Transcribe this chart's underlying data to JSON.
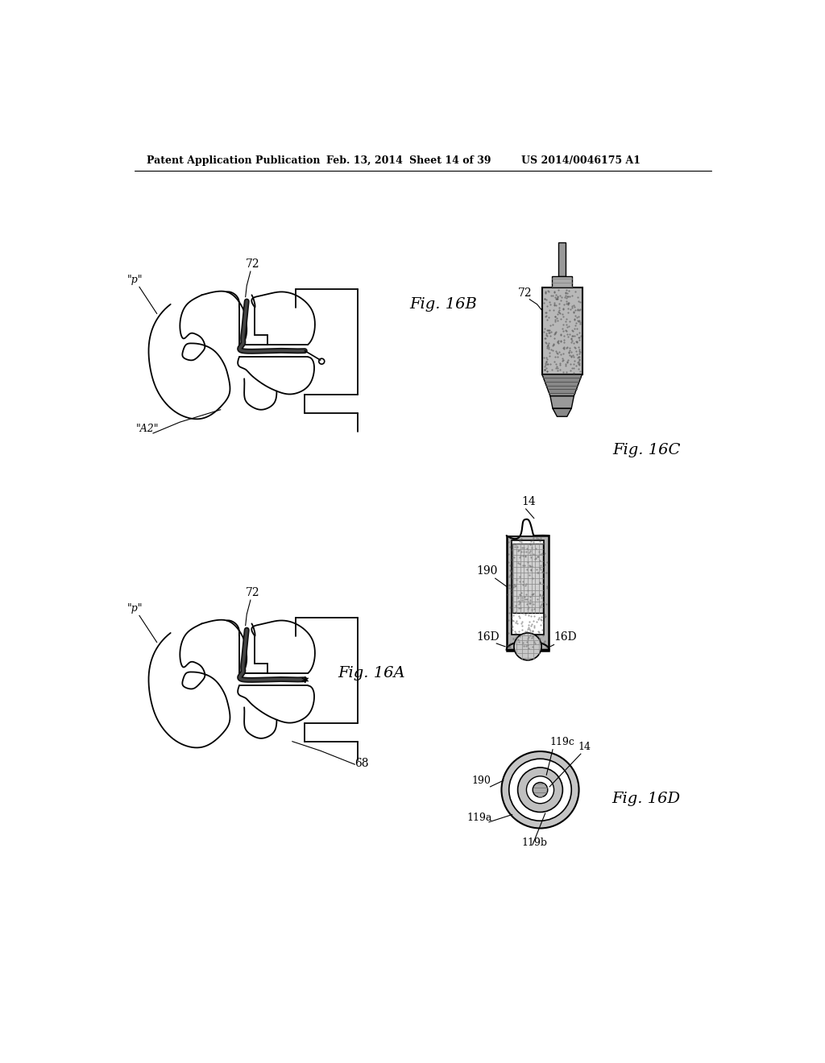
{
  "bg_color": "#ffffff",
  "header_text": "Patent Application Publication",
  "header_date": "Feb. 13, 2014",
  "header_sheet": "Sheet 14 of 39",
  "header_patent": "US 2014/0046175 A1"
}
